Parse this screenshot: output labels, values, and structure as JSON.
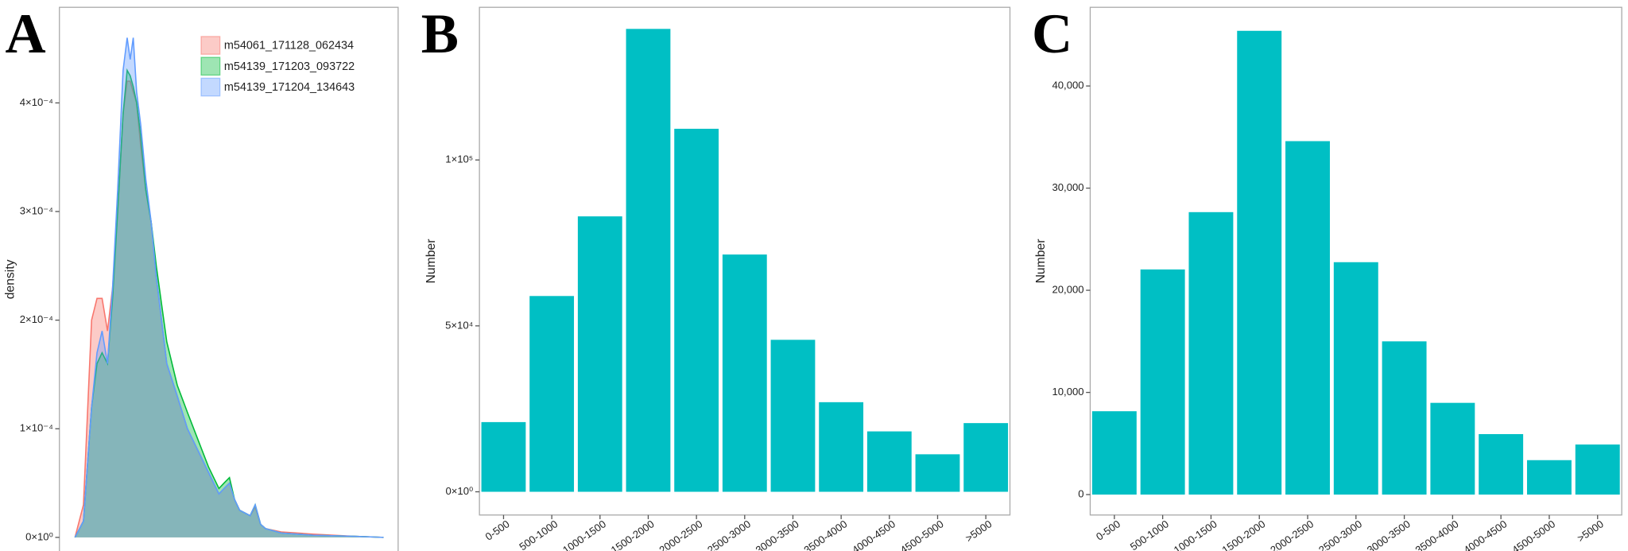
{
  "chart_data": [
    {
      "type": "area",
      "panel_label": "A",
      "y_label": "density",
      "xlim": [
        0,
        100
      ],
      "ylim": [
        -1.3e-05,
        0.000488
      ],
      "yticks": [
        {
          "value": 0,
          "label": "0×10⁰"
        },
        {
          "value": 0.0001,
          "label": "1×10⁻⁴"
        },
        {
          "value": 0.0002,
          "label": "2×10⁻⁴"
        },
        {
          "value": 0.0003,
          "label": "3×10⁻⁴"
        },
        {
          "value": 0.0004,
          "label": "4×10⁻⁴"
        }
      ],
      "x": [
        4.6,
        7.1,
        9.5,
        11.1,
        12.6,
        14.2,
        15.7,
        17.2,
        18.8,
        20,
        20.9,
        21.8,
        22.8,
        24,
        25.5,
        27.1,
        28.6,
        31.7,
        34.8,
        37.8,
        40.9,
        44,
        47.1,
        48.6,
        50.2,
        51.7,
        53.2,
        56.3,
        57.8,
        59.4,
        60.9,
        65.5,
        74.8,
        87.1,
        95.7
      ],
      "series": [
        {
          "name": "m54061_171128_062434",
          "color": "#F8766D",
          "values": [
            0,
            3e-05,
            0.0002,
            0.00022,
            0.00022,
            0.00019,
            0.00023,
            0.0003,
            0.00039,
            0.00042,
            0.00042,
            0.00041,
            0.0004,
            0.00036,
            0.00032,
            0.00029,
            0.00024,
            0.00016,
            0.00013,
            0.0001,
            8e-05,
            6e-05,
            4e-05,
            4.5e-05,
            5e-05,
            3.5e-05,
            2.5e-05,
            2e-05,
            2.8e-05,
            1.2e-05,
            8e-06,
            5e-06,
            3e-06,
            1e-06,
            0
          ]
        },
        {
          "name": "m54139_171203_093722",
          "color": "#00BA38",
          "values": [
            0,
            1.5e-05,
            0.00012,
            0.00016,
            0.00017,
            0.00016,
            0.00022,
            0.0003,
            0.00039,
            0.00043,
            0.000425,
            0.000415,
            0.0004,
            0.00037,
            0.00032,
            0.00029,
            0.00025,
            0.00018,
            0.00014,
            0.000115,
            9e-05,
            6.5e-05,
            4.5e-05,
            5e-05,
            5.5e-05,
            3.5e-05,
            2.5e-05,
            2e-05,
            3e-05,
            1.2e-05,
            8e-06,
            4e-06,
            2e-06,
            1e-06,
            0
          ]
        },
        {
          "name": "m54139_171204_134643",
          "color": "#619CFF",
          "values": [
            0,
            1.5e-05,
            0.00012,
            0.00017,
            0.00019,
            0.00016,
            0.00023,
            0.00032,
            0.00043,
            0.00046,
            0.00044,
            0.00046,
            0.00041,
            0.00038,
            0.00033,
            0.00029,
            0.00024,
            0.00016,
            0.00013,
            0.0001,
            8e-05,
            6e-05,
            4e-05,
            4.5e-05,
            5e-05,
            3.5e-05,
            2.5e-05,
            2e-05,
            3e-05,
            1.2e-05,
            8e-06,
            4e-06,
            2e-06,
            1e-06,
            0
          ]
        }
      ]
    },
    {
      "type": "bar",
      "panel_label": "B",
      "y_label": "Number",
      "color": "#00BFC4",
      "categories": [
        "0-500",
        "500-1000",
        "1000-1500",
        "1500-2000",
        "2000-2500",
        "2500-3000",
        "3000-3500",
        "3500-4000",
        "4000-4500",
        "4500-5000",
        ">5000"
      ],
      "values": [
        21000,
        59000,
        83000,
        139500,
        109400,
        71500,
        45800,
        27000,
        18200,
        11300,
        20700
      ],
      "ylim": [
        -7000,
        146000
      ],
      "yticks": [
        {
          "value": 0,
          "label": "0×10⁰"
        },
        {
          "value": 50000,
          "label": "5×10⁴"
        },
        {
          "value": 100000,
          "label": "1×10⁵"
        }
      ]
    },
    {
      "type": "bar",
      "panel_label": "C",
      "y_label": "Number",
      "color": "#00BFC4",
      "categories": [
        "0-500",
        "500-1000",
        "1000-1500",
        "1500-2000",
        "2000-2500",
        "2500-3000",
        "3000-3500",
        "3500-4000",
        "4000-4500",
        "4500-5000",
        ">5000"
      ],
      "values": [
        8160,
        22040,
        27650,
        45400,
        34600,
        22750,
        15000,
        8980,
        5920,
        3370,
        4900
      ],
      "ylim": [
        -2000,
        47700
      ],
      "yticks": [
        0,
        {
          "value": 10000,
          "label": "10,000"
        },
        {
          "value": 20000,
          "label": "20,000"
        },
        {
          "value": 30000,
          "label": "30,000"
        },
        {
          "value": 40000,
          "label": "40,000"
        }
      ]
    }
  ]
}
